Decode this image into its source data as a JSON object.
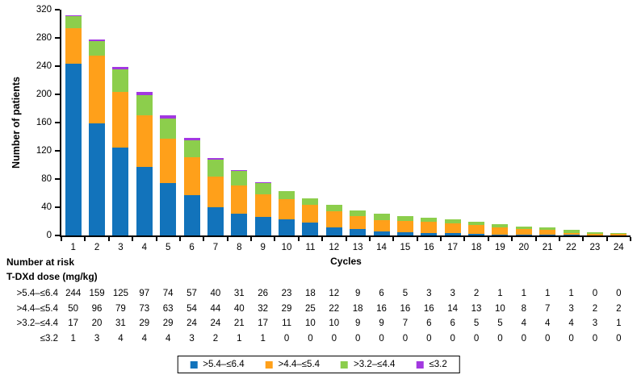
{
  "chart_data": {
    "type": "bar",
    "stacked": true,
    "xlabel": "Cycles",
    "ylabel": "Number of patients",
    "ylim": [
      0,
      320
    ],
    "yticks": [
      0,
      40,
      80,
      120,
      160,
      200,
      240,
      280,
      320
    ],
    "grid": false,
    "legend_position": "bottom",
    "categories": [
      1,
      2,
      3,
      4,
      5,
      6,
      7,
      8,
      9,
      10,
      11,
      12,
      13,
      14,
      15,
      16,
      17,
      18,
      19,
      20,
      21,
      22,
      23,
      24
    ],
    "series": [
      {
        "name": ">5.4–≤6.4",
        "color": "#1273BB",
        "values": [
          244,
          159,
          125,
          97,
          74,
          57,
          40,
          31,
          26,
          23,
          18,
          12,
          9,
          6,
          5,
          3,
          3,
          2,
          1,
          1,
          1,
          1,
          0,
          0
        ]
      },
      {
        "name": ">4.4–≤5.4",
        "color": "#FFA01A",
        "values": [
          50,
          96,
          79,
          73,
          63,
          54,
          44,
          40,
          32,
          29,
          25,
          22,
          18,
          16,
          16,
          16,
          14,
          13,
          10,
          8,
          7,
          3,
          2,
          2
        ]
      },
      {
        "name": ">3.2–≤4.4",
        "color": "#8CCE4C",
        "values": [
          17,
          20,
          31,
          29,
          29,
          24,
          24,
          21,
          17,
          11,
          10,
          10,
          9,
          9,
          7,
          6,
          6,
          5,
          5,
          4,
          4,
          4,
          3,
          1
        ]
      },
      {
        "name": "≤3.2",
        "color": "#A238E0",
        "values": [
          1,
          3,
          4,
          4,
          4,
          3,
          2,
          1,
          1,
          0,
          0,
          0,
          0,
          0,
          0,
          0,
          0,
          0,
          0,
          0,
          0,
          0,
          0,
          0
        ]
      }
    ]
  },
  "risk_table": {
    "title": "Number at risk",
    "subtitle": "T-DXd dose (mg/kg)",
    "rows": [
      {
        "label": ">5.4–≤6.4",
        "values": [
          244,
          159,
          125,
          97,
          74,
          57,
          40,
          31,
          26,
          23,
          18,
          12,
          9,
          6,
          5,
          3,
          3,
          2,
          1,
          1,
          1,
          1,
          0,
          0
        ]
      },
      {
        "label": ">4.4–≤5.4",
        "values": [
          50,
          96,
          79,
          73,
          63,
          54,
          44,
          40,
          32,
          29,
          25,
          22,
          18,
          16,
          16,
          16,
          14,
          13,
          10,
          8,
          7,
          3,
          2,
          2
        ]
      },
      {
        "label": ">3.2–≤4.4",
        "values": [
          17,
          20,
          31,
          29,
          29,
          24,
          24,
          21,
          17,
          11,
          10,
          10,
          9,
          9,
          7,
          6,
          6,
          5,
          5,
          4,
          4,
          4,
          3,
          1
        ]
      },
      {
        "label": "≤3.2",
        "values": [
          1,
          3,
          4,
          4,
          4,
          3,
          2,
          1,
          1,
          0,
          0,
          0,
          0,
          0,
          0,
          0,
          0,
          0,
          0,
          0,
          0,
          0,
          0,
          0
        ]
      }
    ]
  }
}
